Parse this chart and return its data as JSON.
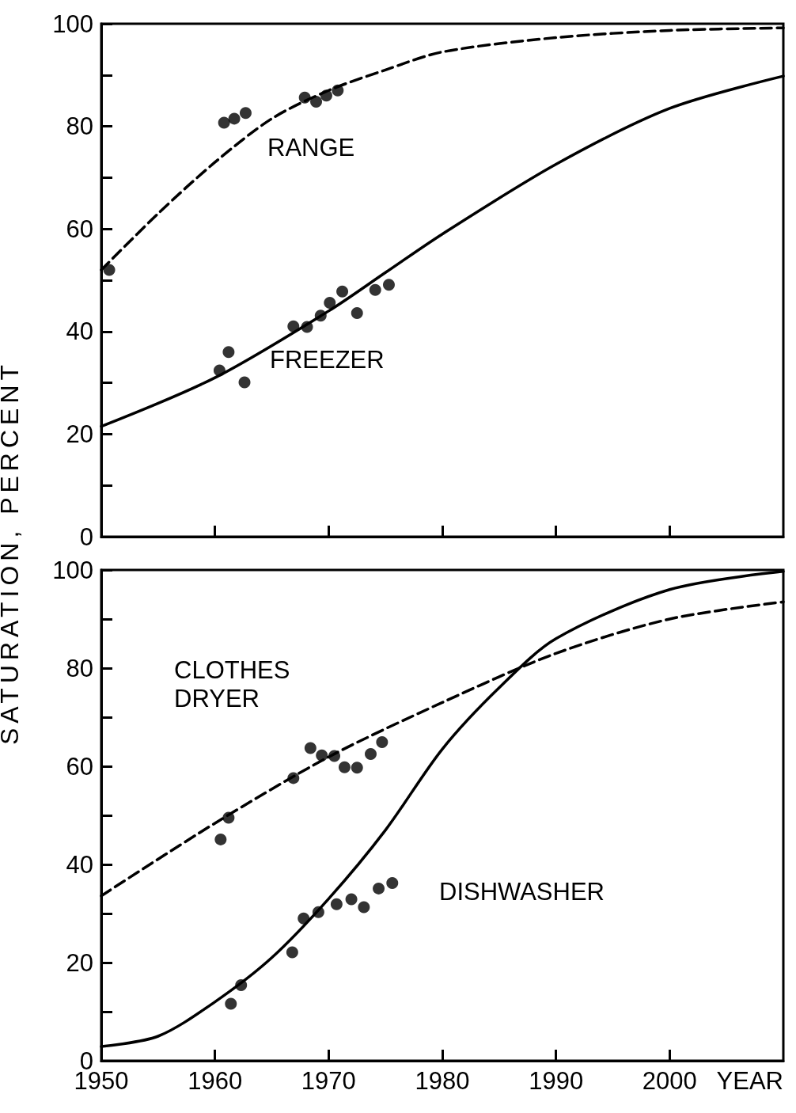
{
  "chart_data": [
    {
      "type": "scatter",
      "ylabel": "SATURATION, PERCENT",
      "xlim": [
        1950,
        2010
      ],
      "xticks": [
        1950,
        1960,
        1970,
        1980,
        1990,
        2000
      ],
      "ylim": [
        0,
        100
      ],
      "yticks": [
        0,
        {
          "value": 10,
          "label": null
        },
        20,
        {
          "value": 30,
          "label": null
        },
        40,
        {
          "value": 50,
          "label": null
        },
        60,
        {
          "value": 70,
          "label": null
        },
        80,
        {
          "value": 90,
          "label": null
        },
        100
      ],
      "tick_labels": "y",
      "grid": false,
      "marker": "circle",
      "annotations": [
        "RANGE",
        "FREEZER"
      ],
      "series": [
        {
          "color": "#000000",
          "x": [
            1950.7,
            1960.8,
            1961.7,
            1962.7,
            1967.9,
            1968.9,
            1969.8,
            1970.8
          ],
          "values": [
            52,
            80.7,
            81.5,
            82.6,
            85.6,
            84.8,
            86,
            87
          ]
        },
        {
          "color": "#000000",
          "x": [
            1960.4,
            1961.2,
            1962.6,
            1966.9,
            1968.1,
            1969.3,
            1970.1,
            1971.2,
            1972.5,
            1974.1,
            1975.3
          ],
          "values": [
            32.4,
            36,
            30.1,
            41,
            40.9,
            43.1,
            45.6,
            47.8,
            43.6,
            48.1,
            49.1
          ]
        },
        {
          "type": "line",
          "color": "#000000",
          "line_style": "dashed",
          "marker": "none",
          "x": [
            1950,
            1955,
            1960,
            1965,
            1970,
            1975,
            1980,
            1990,
            2000,
            2010
          ],
          "values": [
            52,
            63,
            73,
            81.5,
            87,
            91,
            94.5,
            97.3,
            98.7,
            99.2
          ]
        },
        {
          "type": "line",
          "color": "#000000",
          "line_style": "solid",
          "marker": "none",
          "x": [
            1950,
            1960,
            1970,
            1975,
            1980,
            1990,
            2000,
            2010
          ],
          "values": [
            21.5,
            31,
            44,
            51.5,
            59,
            72.6,
            83.5,
            89.8
          ]
        }
      ]
    },
    {
      "type": "scatter",
      "xlabel": "YEAR",
      "xlim": [
        1950,
        2010
      ],
      "xticks": [
        1950,
        1960,
        1970,
        1980,
        1990,
        2000
      ],
      "ylim": [
        0,
        100
      ],
      "yticks": [
        0,
        {
          "value": 10,
          "label": null
        },
        20,
        {
          "value": 30,
          "label": null
        },
        40,
        {
          "value": 50,
          "label": null
        },
        60,
        {
          "value": 70,
          "label": null
        },
        80,
        {
          "value": 90,
          "label": null
        },
        100
      ],
      "grid": false,
      "marker": "circle",
      "annotations": [
        "CLOTHES\nDRYER",
        "DISHWASHER"
      ],
      "series": [
        {
          "color": "#000000",
          "x": [
            1960.5,
            1961.2,
            1966.9,
            1968.4,
            1969.4,
            1970.5,
            1971.4,
            1972.5,
            1973.7,
            1974.7
          ],
          "values": [
            45.1,
            49.5,
            57.6,
            63.7,
            62.2,
            62.1,
            59.8,
            59.7,
            62.5,
            64.9
          ]
        },
        {
          "color": "#000000",
          "x": [
            1961.4,
            1962.3,
            1966.8,
            1967.8,
            1969.1,
            1970.7,
            1972,
            1973.1,
            1974.4,
            1975.6
          ],
          "values": [
            11.6,
            15.4,
            22.1,
            29,
            30.3,
            31.9,
            32.9,
            31.3,
            35.1,
            36.2
          ]
        },
        {
          "type": "line",
          "color": "#000000",
          "line_style": "dashed",
          "marker": "none",
          "x": [
            1950,
            1960,
            1970,
            1980,
            1990,
            2000,
            2010
          ],
          "values": [
            33.6,
            48.4,
            61.9,
            73,
            83,
            90,
            93.5
          ]
        },
        {
          "type": "line",
          "color": "#000000",
          "line_style": "solid",
          "marker": "none",
          "x": [
            1950,
            1955,
            1960,
            1965,
            1970,
            1975,
            1980,
            1985,
            1990,
            2000,
            2010
          ],
          "values": [
            2.9,
            5,
            12,
            21,
            33,
            47,
            63.5,
            76,
            86,
            96,
            99.7
          ]
        }
      ]
    }
  ]
}
